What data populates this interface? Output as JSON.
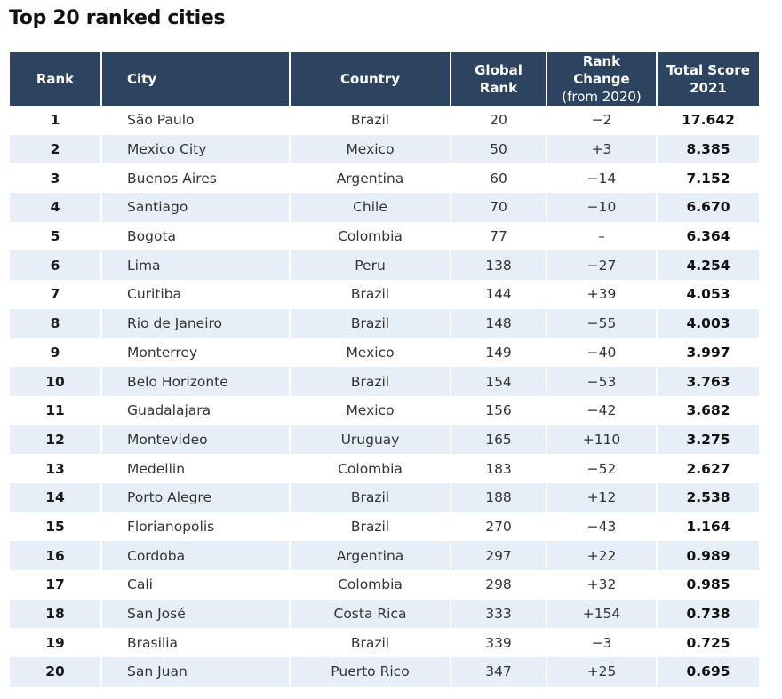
{
  "title": "Top 20 ranked cities",
  "headers": {
    "rank": "Rank",
    "city": "City",
    "country": "Country",
    "global_rank_line1": "Global",
    "global_rank_line2": "Rank",
    "rank_change_line1": "Rank Change",
    "rank_change_line2": "(from 2020)",
    "total_score_line1": "Total Score",
    "total_score_line2": "2021"
  },
  "rows": [
    {
      "rank": "1",
      "city": "São Paulo",
      "country": "Brazil",
      "global_rank": "20",
      "rank_change": "−2",
      "total_score": "17.642"
    },
    {
      "rank": "2",
      "city": "Mexico City",
      "country": "Mexico",
      "global_rank": "50",
      "rank_change": "+3",
      "total_score": "8.385"
    },
    {
      "rank": "3",
      "city": "Buenos Aires",
      "country": "Argentina",
      "global_rank": "60",
      "rank_change": "−14",
      "total_score": "7.152"
    },
    {
      "rank": "4",
      "city": "Santiago",
      "country": "Chile",
      "global_rank": "70",
      "rank_change": "−10",
      "total_score": "6.670"
    },
    {
      "rank": "5",
      "city": "Bogota",
      "country": "Colombia",
      "global_rank": "77",
      "rank_change": "–",
      "total_score": "6.364"
    },
    {
      "rank": "6",
      "city": "Lima",
      "country": "Peru",
      "global_rank": "138",
      "rank_change": "−27",
      "total_score": "4.254"
    },
    {
      "rank": "7",
      "city": "Curitiba",
      "country": "Brazil",
      "global_rank": "144",
      "rank_change": "+39",
      "total_score": "4.053"
    },
    {
      "rank": "8",
      "city": "Rio de Janeiro",
      "country": "Brazil",
      "global_rank": "148",
      "rank_change": "−55",
      "total_score": "4.003"
    },
    {
      "rank": "9",
      "city": "Monterrey",
      "country": "Mexico",
      "global_rank": "149",
      "rank_change": "−40",
      "total_score": "3.997"
    },
    {
      "rank": "10",
      "city": "Belo Horizonte",
      "country": "Brazil",
      "global_rank": "154",
      "rank_change": "−53",
      "total_score": "3.763"
    },
    {
      "rank": "11",
      "city": "Guadalajara",
      "country": "Mexico",
      "global_rank": "156",
      "rank_change": "−42",
      "total_score": "3.682"
    },
    {
      "rank": "12",
      "city": "Montevideo",
      "country": "Uruguay",
      "global_rank": "165",
      "rank_change": "+110",
      "total_score": "3.275"
    },
    {
      "rank": "13",
      "city": "Medellin",
      "country": "Colombia",
      "global_rank": "183",
      "rank_change": "−52",
      "total_score": "2.627"
    },
    {
      "rank": "14",
      "city": "Porto Alegre",
      "country": "Brazil",
      "global_rank": "188",
      "rank_change": "+12",
      "total_score": "2.538"
    },
    {
      "rank": "15",
      "city": "Florianopolis",
      "country": "Brazil",
      "global_rank": "270",
      "rank_change": "−43",
      "total_score": "1.164"
    },
    {
      "rank": "16",
      "city": "Cordoba",
      "country": "Argentina",
      "global_rank": "297",
      "rank_change": "+22",
      "total_score": "0.989"
    },
    {
      "rank": "17",
      "city": "Cali",
      "country": "Colombia",
      "global_rank": "298",
      "rank_change": "+32",
      "total_score": "0.985"
    },
    {
      "rank": "18",
      "city": "San José",
      "country": "Costa Rica",
      "global_rank": "333",
      "rank_change": "+154",
      "total_score": "0.738"
    },
    {
      "rank": "19",
      "city": "Brasilia",
      "country": "Brazil",
      "global_rank": "339",
      "rank_change": "−3",
      "total_score": "0.725"
    },
    {
      "rank": "20",
      "city": "San Juan",
      "country": "Puerto Rico",
      "global_rank": "347",
      "rank_change": "+25",
      "total_score": "0.695"
    }
  ],
  "colors": {
    "header_background": "#2d4460",
    "header_text": "#ffffff",
    "row_stripe": "#e6eff7"
  }
}
